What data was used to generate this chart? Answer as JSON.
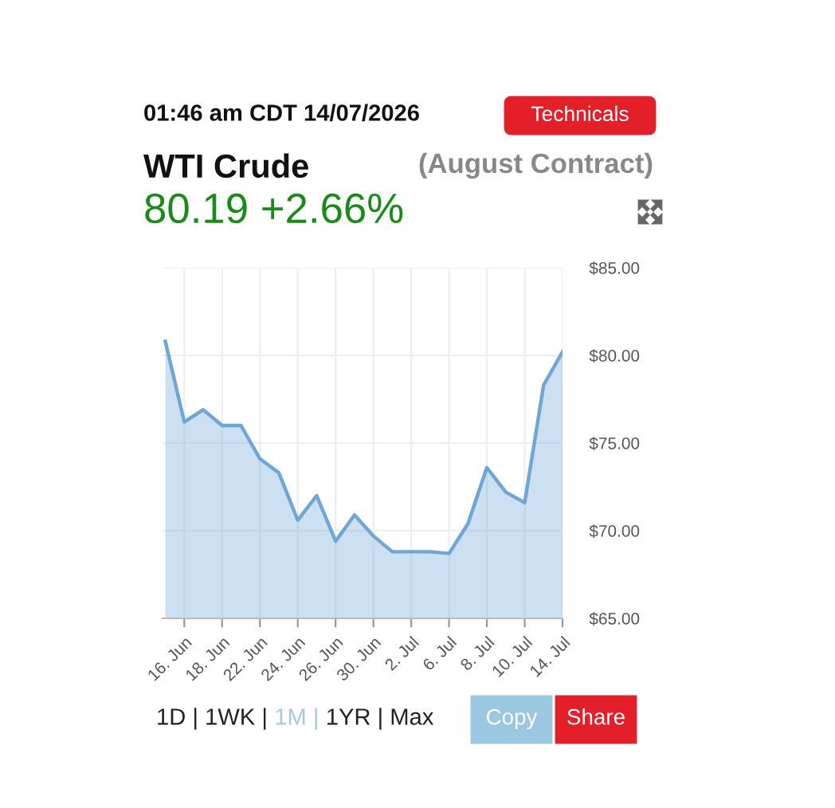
{
  "chart_data": {
    "type": "area",
    "title": "WTI Crude",
    "subtitle": "(August Contract)",
    "annotations": [
      "01:46 am CDT 14/07/2026",
      "Technicals",
      "80.19 +2.66%",
      "1D | 1WK | ",
      "1M | ",
      "1YR | Max",
      "Copy",
      "Share"
    ],
    "categories": [
      null,
      "16. Jun",
      null,
      "18. Jun",
      null,
      "22. Jun",
      null,
      "24. Jun",
      null,
      "26. Jun",
      null,
      "30. Jun",
      null,
      "2. Jul",
      null,
      "6. Jul",
      null,
      "8. Jul",
      null,
      "10. Jul",
      null,
      "14. Jul"
    ],
    "series": [
      {
        "color": "#6fa6d8",
        "values": [
          80.8,
          76.2,
          76.9,
          76.0,
          76.0,
          74.1,
          73.3,
          70.6,
          72.0,
          69.4,
          70.9,
          69.7,
          68.8,
          68.8,
          68.8,
          68.7,
          70.4,
          73.6,
          72.2,
          71.6,
          78.3,
          80.2
        ]
      }
    ],
    "ylim": [
      65,
      85
    ],
    "yticks": [
      {
        "value": 65,
        "label": "$65.00"
      },
      {
        "value": 70,
        "label": "$70.00"
      },
      {
        "value": 75,
        "label": "$75.00"
      },
      {
        "value": 80,
        "label": "$80.00"
      },
      {
        "value": 85,
        "label": "$85.00"
      }
    ],
    "grid": true,
    "legend": false
  }
}
